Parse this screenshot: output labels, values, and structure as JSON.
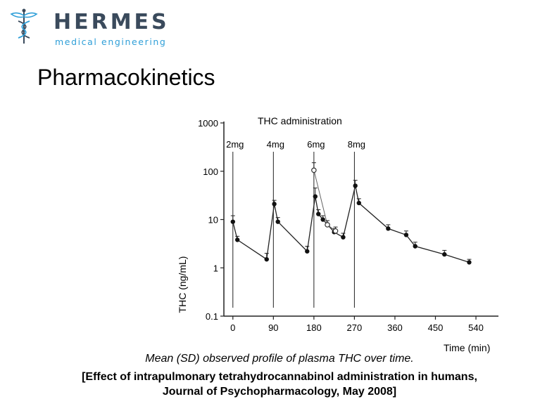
{
  "logo": {
    "name": "HERMES",
    "tagline": "medical engineering"
  },
  "slide": {
    "title": "Pharmacokinetics"
  },
  "caption": {
    "line1": "Mean (SD) observed profile of plasma THC over time.",
    "line2": "[Effect of intrapulmonary tetrahydrocannabinol administration in humans,",
    "line3": "Journal of Psychopharmacology, May 2008]"
  },
  "chart_data": {
    "type": "line",
    "title": "THC administration",
    "xlabel": "Time (min)",
    "ylabel": "THC (ng/mL)",
    "yscale": "log",
    "ylim": [
      0.1,
      1000
    ],
    "xlim": [
      -20,
      590
    ],
    "xticks": [
      "0",
      "90",
      "180",
      "270",
      "360",
      "450",
      "540"
    ],
    "yticks": [
      "0.1",
      "1",
      "10",
      "100",
      "1000"
    ],
    "dose_markers": [
      {
        "label": "2mg",
        "x": 0
      },
      {
        "label": "4mg",
        "x": 90
      },
      {
        "label": "6mg",
        "x": 180
      },
      {
        "label": "8mg",
        "x": 270
      }
    ],
    "series": [
      {
        "points": [
          {
            "x": 0,
            "y": 9,
            "sd": 12
          },
          {
            "x": 10,
            "y": 3.8,
            "sd": 4.5
          },
          {
            "x": 75,
            "y": 1.5,
            "sd": 2.0
          },
          {
            "x": 92,
            "y": 21,
            "sd": 25
          },
          {
            "x": 100,
            "y": 9,
            "sd": 11
          },
          {
            "x": 165,
            "y": 2.2,
            "sd": 2.8
          },
          {
            "x": 183,
            "y": 30,
            "sd": 45
          },
          {
            "x": 190,
            "y": 13,
            "sd": 16
          },
          {
            "x": 200,
            "y": 10,
            "sd": 12
          },
          {
            "x": 225,
            "y": 5.5,
            "sd": 6.5
          },
          {
            "x": 245,
            "y": 4.3,
            "sd": 5.2
          },
          {
            "x": 272,
            "y": 50,
            "sd": 65
          },
          {
            "x": 280,
            "y": 22,
            "sd": 27
          },
          {
            "x": 345,
            "y": 6.5,
            "sd": 7.8
          },
          {
            "x": 385,
            "y": 4.8,
            "sd": 5.8
          },
          {
            "x": 405,
            "y": 2.8,
            "sd": 3.4
          },
          {
            "x": 470,
            "y": 1.9,
            "sd": 2.3
          },
          {
            "x": 525,
            "y": 1.3,
            "sd": 1.5
          }
        ]
      }
    ],
    "open_points": [
      {
        "x": 180,
        "y": 105,
        "sd": 150
      },
      {
        "x": 210,
        "y": 7.8,
        "sd": 9.5
      },
      {
        "x": 228,
        "y": 5.8,
        "sd": 7.0
      }
    ]
  }
}
